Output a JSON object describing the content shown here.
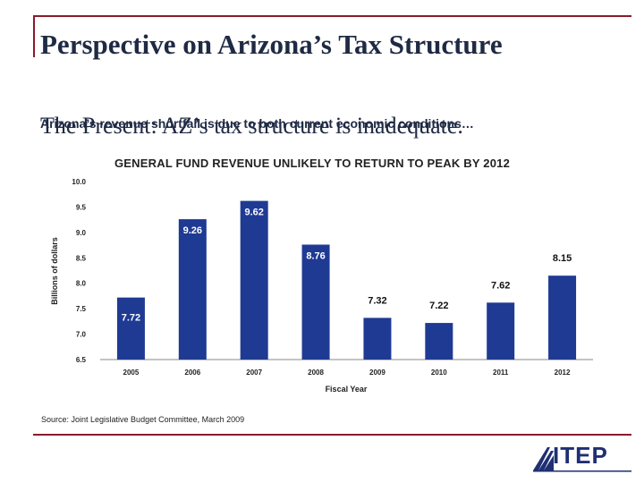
{
  "slide": {
    "title": "Perspective on Arizona’s Tax Structure",
    "subtitle_underlay": "The Present: AZ’s tax structure is inadequate.",
    "subtitle_overlay": "Arizona’s revenue shortfall is due to both current economic conditions…",
    "source": "Source:  Joint Legislative Budget Committee, March 2009",
    "logo_text": "ITEP"
  },
  "colors": {
    "bar": "#1f3a93",
    "accent": "#8b1a2b",
    "title": "#1f2a44"
  },
  "chart_data": {
    "type": "bar",
    "title": "GENERAL FUND REVENUE UNLIKELY TO RETURN TO PEAK BY 2012",
    "xlabel": "Fiscal Year",
    "ylabel": "Billions of dollars",
    "ylim": [
      6.5,
      10.0
    ],
    "yticks": [
      "6.5",
      "7.0",
      "7.5",
      "8.0",
      "8.5",
      "9.0",
      "9.5",
      "10.0"
    ],
    "categories": [
      "2005",
      "2006",
      "2007",
      "2008",
      "2009",
      "2010",
      "2011",
      "2012"
    ],
    "values": [
      7.72,
      9.26,
      9.62,
      8.76,
      7.32,
      7.22,
      7.62,
      8.15
    ],
    "labels": [
      "7.72",
      "9.26",
      "9.62",
      "8.76",
      "7.32",
      "7.22",
      "7.62",
      "8.15"
    ],
    "label_inside": [
      true,
      true,
      true,
      true,
      false,
      false,
      false,
      false
    ]
  }
}
